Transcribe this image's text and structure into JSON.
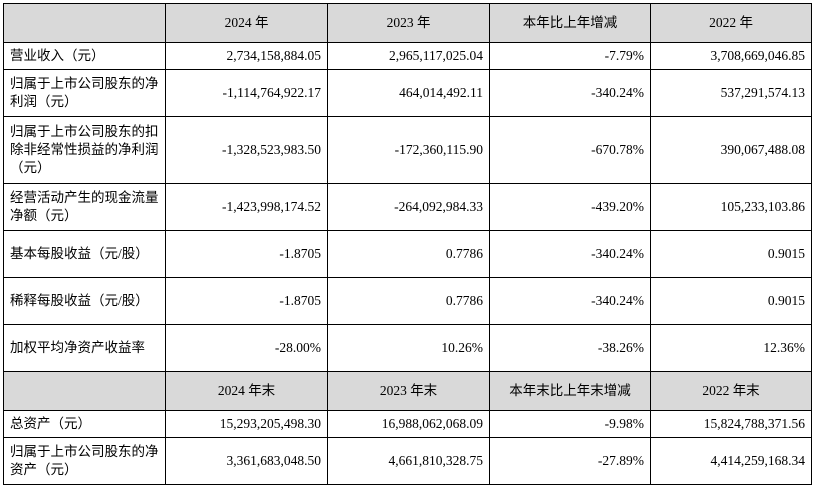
{
  "header1": [
    "",
    "2024 年",
    "2023 年",
    "本年比上年增减",
    "2022 年"
  ],
  "rows1": [
    {
      "label": "营业收入（元）",
      "v": [
        "2,734,158,884.05",
        "2,965,117,025.04",
        "-7.79%",
        "3,708,669,046.85"
      ]
    },
    {
      "label": "归属于上市公司股东的净利润（元）",
      "v": [
        "-1,114,764,922.17",
        "464,014,492.11",
        "-340.24%",
        "537,291,574.13"
      ]
    },
    {
      "label": "归属于上市公司股东的扣除非经常性损益的净利润（元）",
      "v": [
        "-1,328,523,983.50",
        "-172,360,115.90",
        "-670.78%",
        "390,067,488.08"
      ]
    },
    {
      "label": "经营活动产生的现金流量净额（元）",
      "v": [
        "-1,423,998,174.52",
        "-264,092,984.33",
        "-439.20%",
        "105,233,103.86"
      ]
    },
    {
      "label": "基本每股收益（元/股）",
      "v": [
        "-1.8705",
        "0.7786",
        "-340.24%",
        "0.9015"
      ]
    },
    {
      "label": "稀释每股收益（元/股）",
      "v": [
        "-1.8705",
        "0.7786",
        "-340.24%",
        "0.9015"
      ]
    },
    {
      "label": "加权平均净资产收益率",
      "v": [
        "-28.00%",
        "10.26%",
        "-38.26%",
        "12.36%"
      ]
    }
  ],
  "header2": [
    "",
    "2024 年末",
    "2023 年末",
    "本年末比上年末增减",
    "2022 年末"
  ],
  "rows2": [
    {
      "label": "总资产（元）",
      "v": [
        "15,293,205,498.30",
        "16,988,062,068.09",
        "-9.98%",
        "15,824,788,371.56"
      ]
    },
    {
      "label": "归属于上市公司股东的净资产（元）",
      "v": [
        "3,361,683,048.50",
        "4,661,810,328.75",
        "-27.89%",
        "4,414,259,168.34"
      ]
    }
  ]
}
